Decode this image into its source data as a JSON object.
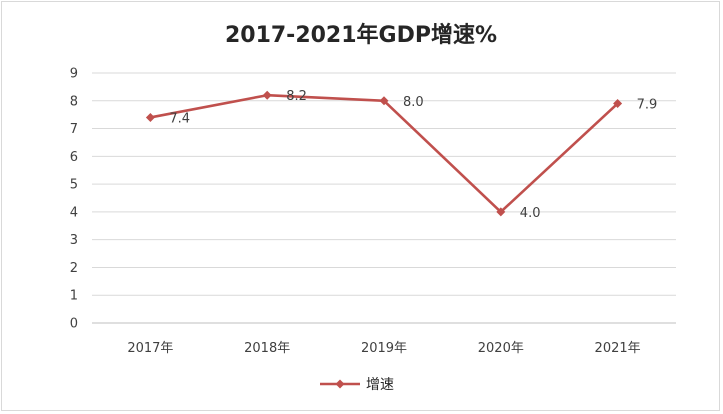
{
  "chart_data": {
    "type": "line",
    "title": "2017-2021年GDP增速%",
    "xlabel": "",
    "ylabel": "",
    "categories": [
      "2017年",
      "2018年",
      "2019年",
      "2020年",
      "2021年"
    ],
    "series": [
      {
        "name": "增速",
        "values": [
          7.4,
          8.2,
          8.0,
          4.0,
          7.9
        ],
        "labels": [
          "7.4",
          "8.2",
          "8.0",
          "4.0",
          "7.9"
        ]
      }
    ],
    "ylim": [
      0,
      9
    ],
    "yticks": [
      "0",
      "1",
      "2",
      "3",
      "4",
      "5",
      "6",
      "7",
      "8",
      "9"
    ],
    "grid": true,
    "legend": "bottom",
    "colors": {
      "series": "#c0504d",
      "grid": "#d9d9d9",
      "axis": "#bfbfbf"
    }
  }
}
